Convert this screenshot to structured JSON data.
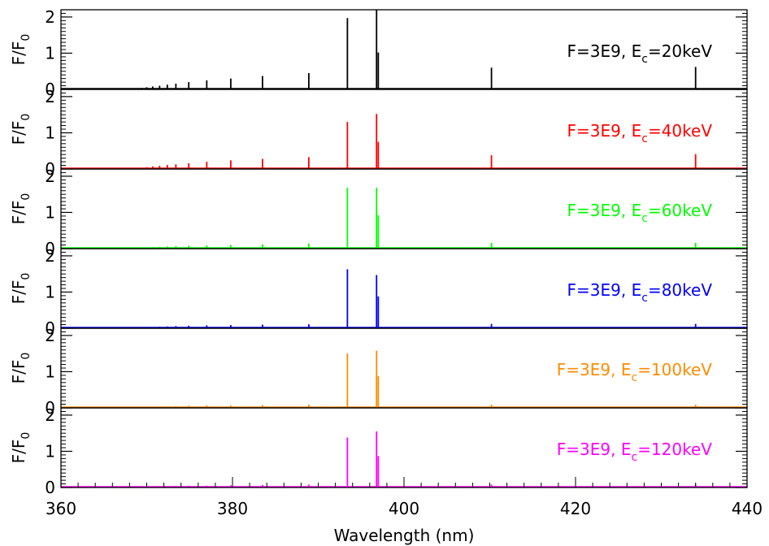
{
  "chart_data": {
    "type": "line",
    "xlabel": "Wavelength (nm)",
    "xlim": [
      360,
      440
    ],
    "x_ticks": [
      "360",
      "380",
      "400",
      "420",
      "440"
    ],
    "ylabel_main": "F/F",
    "ylabel_sub": "0",
    "ylim": [
      0,
      2.2
    ],
    "y_ticks": [
      "0",
      "1",
      "2"
    ],
    "line_positions_nm": [
      368.9,
      369.4,
      370.0,
      370.7,
      371.5,
      372.4,
      373.4,
      374.9,
      377.0,
      379.8,
      383.5,
      388.9,
      393.4,
      396.8,
      397.0,
      410.2,
      434.0
    ],
    "panels": [
      {
        "label_prefix": "F=3E9, E",
        "label_sub": "c",
        "label_suffix": "=20keV",
        "color": "#000000",
        "values": [
          0.02,
          0.04,
          0.06,
          0.08,
          0.1,
          0.13,
          0.16,
          0.2,
          0.25,
          0.3,
          0.37,
          0.45,
          1.97,
          2.3,
          1.02,
          0.6,
          0.62
        ]
      },
      {
        "label_prefix": "F=3E9, E",
        "label_sub": "c",
        "label_suffix": "=40keV",
        "color": "#ff0000",
        "values": [
          0.02,
          0.03,
          0.05,
          0.07,
          0.09,
          0.11,
          0.13,
          0.16,
          0.2,
          0.24,
          0.28,
          0.33,
          1.3,
          1.52,
          0.75,
          0.38,
          0.41
        ]
      },
      {
        "label_prefix": "F=3E9, E",
        "label_sub": "c",
        "label_suffix": "=60keV",
        "color": "#00ff00",
        "values": [
          0.01,
          0.02,
          0.03,
          0.04,
          0.05,
          0.06,
          0.07,
          0.08,
          0.09,
          0.1,
          0.12,
          0.14,
          1.68,
          1.68,
          0.92,
          0.16,
          0.16
        ]
      },
      {
        "label_prefix": "F=3E9, E",
        "label_sub": "c",
        "label_suffix": "=80keV",
        "color": "#0000ff",
        "values": [
          0.01,
          0.02,
          0.02,
          0.03,
          0.04,
          0.05,
          0.06,
          0.07,
          0.08,
          0.09,
          0.1,
          0.11,
          1.63,
          1.47,
          0.88,
          0.12,
          0.12
        ]
      },
      {
        "label_prefix": "F=3E9, E",
        "label_sub": "c",
        "label_suffix": "=100keV",
        "color": "#ff8c00",
        "values": [
          0.01,
          0.02,
          0.02,
          0.03,
          0.03,
          0.04,
          0.05,
          0.06,
          0.07,
          0.07,
          0.08,
          0.09,
          1.5,
          1.58,
          0.88,
          0.09,
          0.09
        ]
      },
      {
        "label_prefix": "F=3E9, E",
        "label_sub": "c",
        "label_suffix": "=120keV",
        "color": "#ff00ff",
        "values": [
          0.01,
          0.01,
          0.02,
          0.02,
          0.03,
          0.03,
          0.04,
          0.05,
          0.05,
          0.06,
          0.07,
          0.08,
          1.38,
          1.55,
          0.87,
          0.08,
          0.08
        ]
      }
    ]
  }
}
